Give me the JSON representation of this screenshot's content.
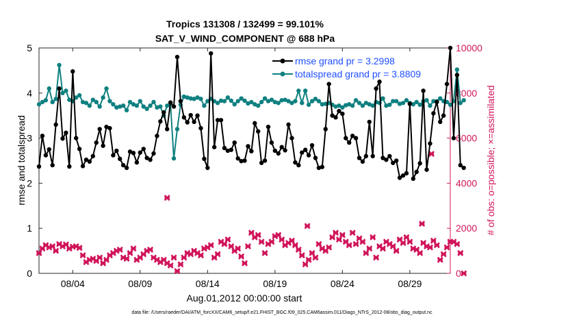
{
  "chart_data": {
    "type": "line",
    "title_line1": "Tropics 131308 / 132499 = 99.101%",
    "title_line2": "SAT_V_WIND_COMPONENT @ 688 hPa",
    "xlabel": "Aug.01,2012 00:00:00 start",
    "ylabel_left": "rmse and totalspread",
    "ylabel_right": "# of obs: o=possible; ×=assimilated",
    "footnote": "data file: /Users/raeder/DAI/ATM_forcXX/CAM6_setup/f.e21.FHIST_BGC.f09_025.CAM6assim.011/Diags_NTrS_2012-08/obs_diag_output.nc",
    "x_range": [
      1.5,
      32
    ],
    "ylim_left": [
      0,
      5
    ],
    "ylim_right": [
      0,
      10000
    ],
    "x_ticks": [
      {
        "day": 4,
        "label": "08/04"
      },
      {
        "day": 9,
        "label": "08/09"
      },
      {
        "day": 14,
        "label": "08/14"
      },
      {
        "day": 19,
        "label": "08/19"
      },
      {
        "day": 24,
        "label": "08/24"
      },
      {
        "day": 29,
        "label": "08/29"
      }
    ],
    "y_ticks_left": [
      "0",
      "1",
      "2",
      "3",
      "4",
      "5"
    ],
    "y_ticks_right": [
      "0",
      "2000",
      "4000",
      "6000",
      "8000",
      "10000"
    ],
    "legend": [
      "rmse grand pr = 3.2998",
      "totalspread grand pr = 3.8809"
    ],
    "colors": {
      "rmse": "#000000",
      "spread": "#0f8080",
      "obs": "#d0145a",
      "legend_text": "#1f4fff"
    },
    "series": [
      {
        "name": "rmse",
        "x_start": 1.5,
        "x_step": 0.25,
        "values": [
          2.37,
          3.05,
          2.62,
          2.75,
          2.4,
          3.3,
          4.1,
          2.99,
          3.12,
          2.37,
          4.48,
          3.0,
          2.76,
          2.38,
          2.52,
          2.48,
          2.6,
          2.9,
          3.2,
          2.83,
          3.25,
          3.22,
          2.62,
          2.72,
          2.54,
          2.4,
          2.34,
          2.7,
          2.67,
          2.46,
          2.68,
          2.76,
          2.56,
          2.52,
          2.66,
          3.05,
          3.37,
          3.57,
          3.2,
          3.79,
          3.7,
          4.8,
          3.82,
          3.46,
          3.35,
          3.51,
          3.36,
          3.5,
          3.22,
          2.54,
          2.34,
          4.88,
          2.8,
          3.4,
          3.4,
          2.78,
          2.72,
          2.74,
          2.9,
          2.55,
          2.49,
          2.5,
          2.82,
          2.71,
          3.33,
          3.15,
          2.45,
          2.5,
          3.25,
          2.9,
          2.72,
          2.66,
          2.8,
          2.73,
          3.3,
          3.0,
          2.46,
          2.4,
          2.68,
          2.74,
          2.62,
          2.84,
          2.56,
          2.34,
          2.36,
          3.2,
          4.2,
          3.5,
          3.46,
          3.6,
          3.54,
          3.0,
          2.9,
          3.05,
          3.0,
          2.56,
          2.48,
          2.6,
          3.36,
          2.6,
          4.1,
          4.25,
          2.56,
          2.52,
          2.6,
          2.45,
          2.5,
          2.12,
          2.17,
          2.22,
          3.76,
          2.1,
          2.25,
          2.44,
          4.05,
          2.3,
          2.88,
          3.55,
          3.8,
          3.36,
          3.5,
          4.2,
          5.0,
          3.0,
          4.4,
          2.4,
          2.34
        ]
      },
      {
        "name": "totalspread",
        "x_start": 1.5,
        "x_step": 0.25,
        "values": [
          3.75,
          3.8,
          3.84,
          4.1,
          3.8,
          3.87,
          4.62,
          4.0,
          4.05,
          3.85,
          3.82,
          3.9,
          3.95,
          3.8,
          3.78,
          3.72,
          3.85,
          3.8,
          3.7,
          3.9,
          4.1,
          3.82,
          3.75,
          3.68,
          3.7,
          3.72,
          3.62,
          3.8,
          3.75,
          3.72,
          3.82,
          3.7,
          3.65,
          3.72,
          3.8,
          3.68,
          3.7,
          3.5,
          3.72,
          3.76,
          2.55,
          3.2,
          3.74,
          3.92,
          3.9,
          3.88,
          3.87,
          3.9,
          3.87,
          3.72,
          3.82,
          3.87,
          3.82,
          3.78,
          3.83,
          3.82,
          3.9,
          3.83,
          3.75,
          3.82,
          3.88,
          3.83,
          3.77,
          3.8,
          3.75,
          3.72,
          3.8,
          3.88,
          3.82,
          3.85,
          3.8,
          3.78,
          3.84,
          3.85,
          3.82,
          3.78,
          3.82,
          4.05,
          3.78,
          4.05,
          3.74,
          3.82,
          3.87,
          3.82,
          3.75,
          3.76,
          3.78,
          3.74,
          3.7,
          3.72,
          3.68,
          3.73,
          3.75,
          3.72,
          3.84,
          3.78,
          3.72,
          3.78,
          3.75,
          3.72,
          3.8,
          3.78,
          3.88,
          3.72,
          3.74,
          3.82,
          3.82,
          3.76,
          3.78,
          3.84,
          3.78,
          3.75,
          3.8,
          3.74,
          3.82,
          3.84,
          3.72,
          3.82,
          3.82,
          3.88,
          3.82,
          3.8,
          3.74,
          3.82,
          4.52,
          3.78,
          3.84
        ]
      },
      {
        "name": "obs_assimilated",
        "x_start": 1.5,
        "x_step": 0.25,
        "values": [
          900,
          1100,
          1250,
          1150,
          1200,
          1000,
          1300,
          1200,
          1280,
          1100,
          1180,
          1200,
          1130,
          800,
          500,
          600,
          650,
          550,
          700,
          450,
          600,
          800,
          900,
          1000,
          1050,
          700,
          650,
          900,
          1100,
          600,
          700,
          850,
          1000,
          1050,
          700,
          600,
          500,
          600,
          450,
          350,
          700,
          100,
          400,
          700,
          900,
          850,
          1000,
          900,
          800,
          1100,
          1150,
          1250,
          700,
          850,
          1400,
          1300,
          1500,
          1200,
          1000,
          1100,
          750,
          450,
          1200,
          1800,
          1600,
          1700,
          1400,
          900,
          1300,
          1400,
          1650,
          1700,
          1500,
          1250,
          1350,
          1450,
          1250,
          1050,
          800,
          400,
          600,
          900,
          700,
          1300,
          1100,
          1000,
          1150,
          1600,
          1800,
          1500,
          1700,
          1400,
          1250,
          1800,
          1300,
          1550,
          1400,
          900,
          1100,
          1600,
          700,
          1200,
          1100,
          1400,
          1300,
          1200,
          1000,
          1500,
          1350,
          1600,
          1400,
          1100,
          1050,
          900,
          1350,
          1200,
          1150,
          1450,
          1250,
          600,
          850,
          1150,
          1400,
          1400,
          1300,
          900,
          0
        ]
      }
    ],
    "obs_extra": [
      {
        "x": 11.0,
        "value": 3350
      },
      {
        "x": 30.6,
        "value": 5300
      },
      {
        "x": 29.9,
        "value": 2200
      },
      {
        "x": 21.4,
        "value": 2100
      }
    ]
  }
}
